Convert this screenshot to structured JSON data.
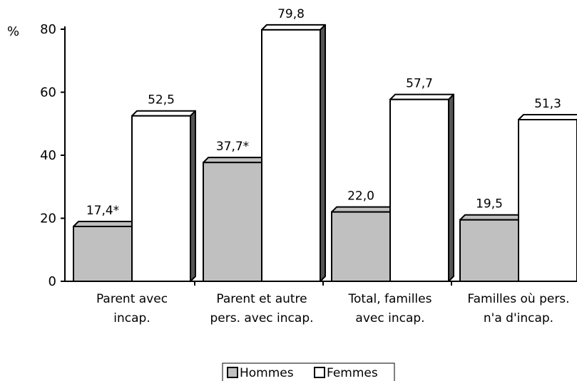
{
  "chart_data": {
    "type": "bar",
    "unit_label": "%",
    "ylim": [
      0,
      80
    ],
    "yticks": [
      "0",
      "20",
      "40",
      "60",
      "80"
    ],
    "categories": [
      [
        "Parent avec",
        "incap."
      ],
      [
        "Parent et autre",
        "pers. avec incap."
      ],
      [
        "Total, familles",
        "avec incap."
      ],
      [
        "Familles où pers.",
        "n'a d'incap."
      ]
    ],
    "series": [
      {
        "name": "Hommes",
        "color": "#c0c0c0",
        "values": [
          17.4,
          37.7,
          22.0,
          19.5
        ],
        "labels": [
          "17,4*",
          "37,7*",
          "22,0",
          "19,5"
        ]
      },
      {
        "name": "Femmes",
        "color": "#ffffff",
        "values": [
          52.5,
          79.8,
          57.7,
          51.3
        ],
        "labels": [
          "52,5",
          "79,8",
          "57,7",
          "51,3"
        ]
      }
    ],
    "legend_position": "bottom-center",
    "style": "3d-bars"
  }
}
